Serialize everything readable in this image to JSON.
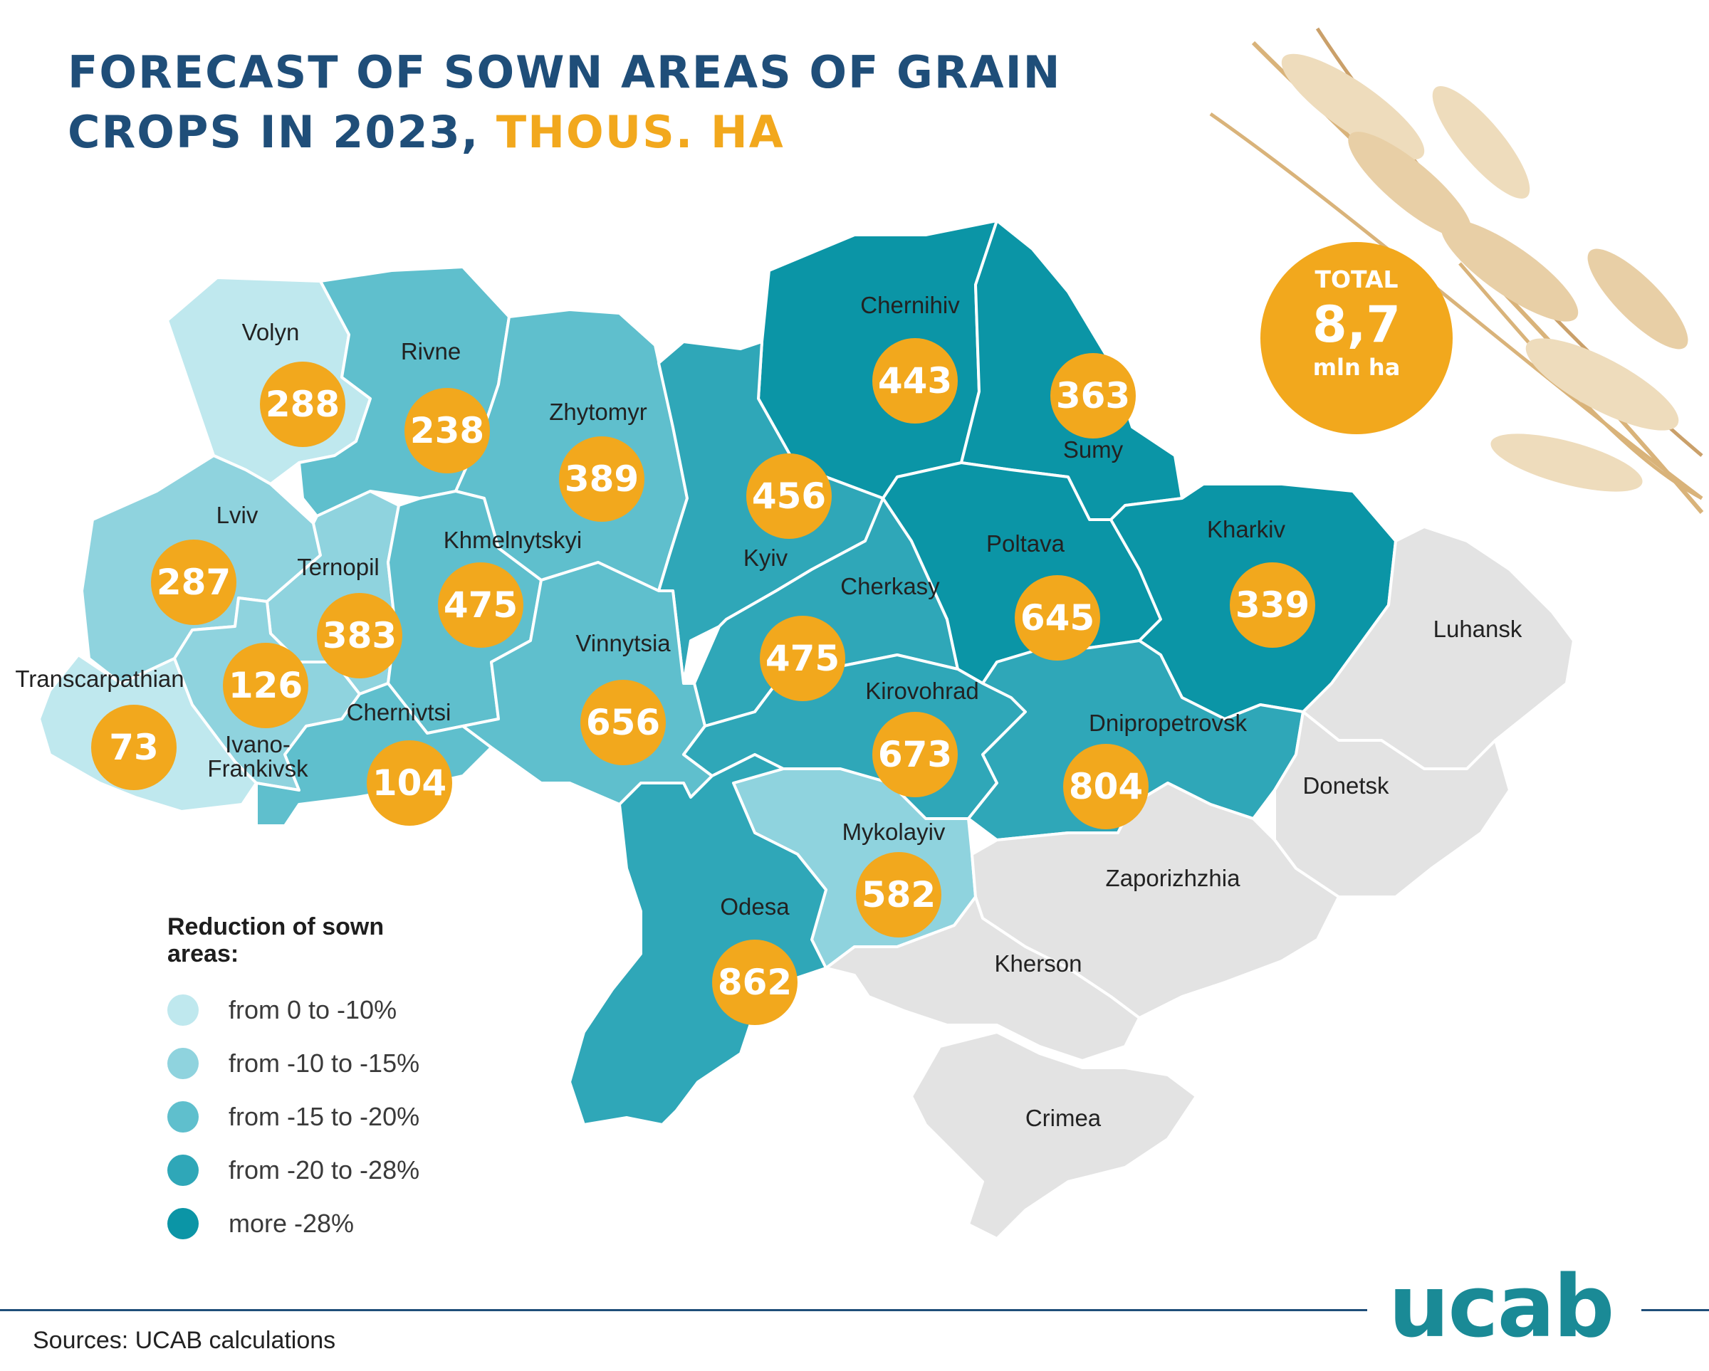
{
  "title": {
    "line1": "FORECAST OF SOWN AREAS OF GRAIN",
    "line2": "CROPS IN 2023,",
    "unit": "THOUS. HA"
  },
  "total": {
    "label": "TOTAL",
    "value": "8,7",
    "unit": "mln ha"
  },
  "colors": {
    "band_0_10": "#bfe8ee",
    "band_10_15": "#8fd3de",
    "band_15_20": "#5fbfcd",
    "band_20_28": "#2fa7b8",
    "band_more_28": "#0b95a6",
    "occupied": "#e3e3e3",
    "value_circle": "#f2a81d",
    "title": "#1f4e79"
  },
  "legend": {
    "title": "Reduction of sown areas:",
    "items": [
      {
        "label": "from 0 to -10%",
        "band": "band_0_10"
      },
      {
        "label": "from -10 to -15%",
        "band": "band_10_15"
      },
      {
        "label": "from -15 to -20%",
        "band": "band_15_20"
      },
      {
        "label": "from -20 to -28%",
        "band": "band_20_28"
      },
      {
        "label": "more -28%",
        "band": "band_more_28"
      }
    ]
  },
  "regions": [
    {
      "name": "Volyn",
      "value": "288",
      "band": "band_0_10"
    },
    {
      "name": "Rivne",
      "value": "238",
      "band": "band_15_20"
    },
    {
      "name": "Zhytomyr",
      "value": "389",
      "band": "band_15_20"
    },
    {
      "name": "Chernihiv",
      "value": "443",
      "band": "band_more_28"
    },
    {
      "name": "Sumy",
      "value": "363",
      "band": "band_more_28"
    },
    {
      "name": "Lviv",
      "value": "287",
      "band": "band_10_15"
    },
    {
      "name": "Ternopil",
      "value": "383",
      "band": "band_10_15"
    },
    {
      "name": "Khmelnytskyi",
      "value": "475",
      "band": "band_15_20"
    },
    {
      "name": "Kyiv",
      "value": "456",
      "band": "band_20_28"
    },
    {
      "name": "Cherkasy",
      "value": "475",
      "band": "band_20_28"
    },
    {
      "name": "Poltava",
      "value": "645",
      "band": "band_more_28"
    },
    {
      "name": "Kharkiv",
      "value": "339",
      "band": "band_more_28"
    },
    {
      "name": "Transcarpathian",
      "value": "73",
      "band": "band_0_10"
    },
    {
      "name": "Ivano-Frankivsk",
      "value": "126",
      "band": "band_10_15"
    },
    {
      "name": "Chernivtsi",
      "value": "104",
      "band": "band_15_20"
    },
    {
      "name": "Vinnytsia",
      "value": "656",
      "band": "band_15_20"
    },
    {
      "name": "Kirovohrad",
      "value": "673",
      "band": "band_20_28"
    },
    {
      "name": "Dnipropetrovsk",
      "value": "804",
      "band": "band_20_28"
    },
    {
      "name": "Mykolayiv",
      "value": "582",
      "band": "band_10_15"
    },
    {
      "name": "Odesa",
      "value": "862",
      "band": "band_20_28"
    },
    {
      "name": "Luhansk",
      "value": "",
      "band": "occupied"
    },
    {
      "name": "Donetsk",
      "value": "",
      "band": "occupied"
    },
    {
      "name": "Zaporizhzhia",
      "value": "",
      "band": "occupied"
    },
    {
      "name": "Kherson",
      "value": "",
      "band": "occupied"
    },
    {
      "name": "Crimea",
      "value": "",
      "band": "occupied"
    }
  ],
  "source": "Sources: UCAB calculations",
  "logo": "ucab"
}
